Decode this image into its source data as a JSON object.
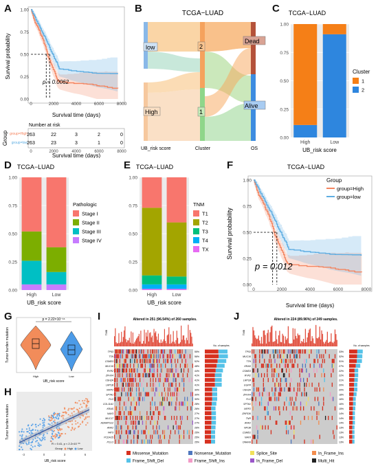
{
  "panels": {
    "A": "A",
    "B": "B",
    "C": "C",
    "D": "D",
    "E": "E",
    "F": "F",
    "G": "G",
    "H": "H",
    "I": "I",
    "J": "J"
  },
  "colors": {
    "high": "#F8766D",
    "low": "#619CFF",
    "orange": "#F57F17",
    "blue": "#2E86DE",
    "high_km": "#F4845F",
    "low_km": "#5DADE2"
  },
  "km_small": {
    "ylabel": "Survival probability",
    "xlabel": "Survival time (days)",
    "pval": "p = 0.0062",
    "yticks": [
      "0.00",
      "0.25",
      "0.50",
      "0.75",
      "1.00"
    ],
    "xticks": [
      "0",
      "2000",
      "4000",
      "6000",
      "8000"
    ],
    "risk_title": "Number at risk",
    "risk_group_label": "Group",
    "risk_rows": [
      {
        "name": "group=High",
        "values": [
          "263",
          "22",
          "3",
          "2",
          "0"
        ]
      },
      {
        "name": "group=low",
        "values": [
          "263",
          "23",
          "3",
          "1",
          "0"
        ]
      }
    ],
    "risk_xlabel": "Survival time (days)",
    "risk_xticks": [
      "0",
      "2000",
      "4000",
      "6000",
      "8000"
    ]
  },
  "sankey": {
    "title": "TCGA−LUAD",
    "nodes": {
      "low": "low",
      "high": "High",
      "c2": "2",
      "c1": "1",
      "dead": "Dead",
      "alive": "Alive"
    },
    "axis_labels": [
      "UB_risk score",
      "Cluster",
      "OS"
    ]
  },
  "chart_C": {
    "title": "TCGA−LUAD",
    "xlabel": "UB_risk score",
    "categories": [
      "High",
      "Low"
    ],
    "yticks": [
      "0.00",
      "0.25",
      "0.50",
      "0.75",
      "1.00"
    ],
    "legend_title": "Cluster",
    "legend": [
      "1",
      "2"
    ],
    "series": [
      {
        "name": "1",
        "values": [
          0.89,
          0.09
        ]
      },
      {
        "name": "2",
        "values": [
          0.11,
          0.91
        ]
      }
    ]
  },
  "chart_D": {
    "title": "TCGA−LUAD",
    "xlabel": "UB_risk score",
    "categories": [
      "High",
      "Low"
    ],
    "yticks": [
      "0.00",
      "0.25",
      "0.50",
      "0.75",
      "1.00"
    ],
    "legend_title": "Pathologic",
    "legend": [
      "Stage I",
      "Stage II",
      "Stage III",
      "Stage IV"
    ],
    "series_colors": [
      "#F8766D",
      "#7CAE00",
      "#00BFC4",
      "#C77CFF"
    ],
    "series": [
      {
        "name": "Stage I",
        "values": [
          0.48,
          0.62
        ]
      },
      {
        "name": "Stage II",
        "values": [
          0.26,
          0.22
        ]
      },
      {
        "name": "Stage III",
        "values": [
          0.21,
          0.11
        ]
      },
      {
        "name": "Stage IV",
        "values": [
          0.05,
          0.05
        ]
      }
    ]
  },
  "chart_E": {
    "title": "TCGA−LUAD",
    "xlabel": "UB_risk score",
    "categories": [
      "High",
      "Low"
    ],
    "yticks": [
      "0.00",
      "0.25",
      "0.50",
      "0.75",
      "1.00"
    ],
    "legend_title": "TNM",
    "legend": [
      "T1",
      "T2",
      "T3",
      "T4",
      "TX"
    ],
    "series_colors": [
      "#F8766D",
      "#A3A500",
      "#00BF7D",
      "#00B0F6",
      "#E76BF3"
    ],
    "series": [
      {
        "name": "T1",
        "values": [
          0.27,
          0.4
        ]
      },
      {
        "name": "T2",
        "values": [
          0.6,
          0.48
        ]
      },
      {
        "name": "T3",
        "values": [
          0.08,
          0.07
        ]
      },
      {
        "name": "T4",
        "values": [
          0.04,
          0.04
        ]
      },
      {
        "name": "TX",
        "values": [
          0.01,
          0.01
        ]
      }
    ]
  },
  "km_big": {
    "title": "TCGA−LUAD",
    "ylabel": "Survival probability",
    "xlabel": "Survival time (days)",
    "pval": "p = 0.012",
    "yticks": [
      "0.00",
      "0.25",
      "0.50",
      "0.75",
      "1.00"
    ],
    "xticks": [
      "0",
      "2000",
      "4000",
      "6000",
      "8000"
    ],
    "legend_title": "Group",
    "legend": [
      "group=High",
      "group=low"
    ]
  },
  "violin": {
    "ylabel": "Tumor burden mutation",
    "xlabel": "UB_risk score",
    "pval": "p = 2.22×10⁻¹⁶",
    "categories": [
      "High",
      "Low"
    ]
  },
  "scatter": {
    "ylabel": "Tumor burden mutation",
    "xlabel": "UB_risk score",
    "stats": "R = 0.41, p < 2.2×10⁻¹⁶",
    "legend_title": "Group",
    "legend": [
      "High",
      "Low"
    ],
    "xticks": [
      "-3",
      "0",
      "3",
      "6"
    ]
  },
  "onco_I": {
    "title": "Altered in 251 (96.54%) of 260 samples.",
    "tmb_label": "TMB",
    "samples_label": "No. of samples",
    "genes": [
      "TP53",
      "TTN",
      "CSMD3",
      "MUC16",
      "RYR2",
      "ZFHX4",
      "USH2A",
      "LRP1B",
      "XIRP2",
      "SPTA1",
      "FLG",
      "COL11A1",
      "KRAS",
      "NAV3",
      "MUC17",
      "ADAMTS12",
      "ANK2",
      "FAT3",
      "PCDH15",
      "PCLO"
    ],
    "pcts": [
      "55%",
      "56%",
      "52%",
      "48%",
      "44%",
      "41%",
      "41%",
      "41%",
      "30%",
      "30%",
      "30%",
      "28%",
      "26%",
      "27%",
      "27%",
      "27%",
      "26%",
      "25%",
      "25%",
      "25%"
    ]
  },
  "onco_J": {
    "title": "Altered in 224 (89.96%) of 249 samples.",
    "tmb_label": "TMB",
    "samples_label": "No. of samples",
    "genes": [
      "TP53",
      "MUC16",
      "TTN",
      "KRAS",
      "CSMD3",
      "RYR2",
      "LRP1B",
      "EGFR",
      "USH2A",
      "ZFHX4",
      "FLG",
      "SPTA1",
      "XIRP2",
      "ZNF536",
      "TNR",
      "ANK2",
      "NPOB",
      "CSMD1",
      "NAV3",
      "DNAH9"
    ],
    "pcts": [
      "33%",
      "32%",
      "31%",
      "27%",
      "22%",
      "22%",
      "21%",
      "20%",
      "20%",
      "18%",
      "16%",
      "16%",
      "15%",
      "14%",
      "14%",
      "14%",
      "13%",
      "13%",
      "13%",
      "13%"
    ]
  },
  "onco_legend": [
    "Missense_Mutation",
    "Nonsense_Mutation",
    "Splice_Site",
    "In_Frame_Ins",
    "Frame_Shift_Del",
    "Frame_Shift_Ins",
    "In_Frame_Del",
    "Multi_Hit"
  ],
  "onco_colors": [
    "#D7301F",
    "#4F77BE",
    "#F1E05A",
    "#F38D4E",
    "#55C2E8",
    "#F29AC7",
    "#9A56C9",
    "#222222"
  ]
}
